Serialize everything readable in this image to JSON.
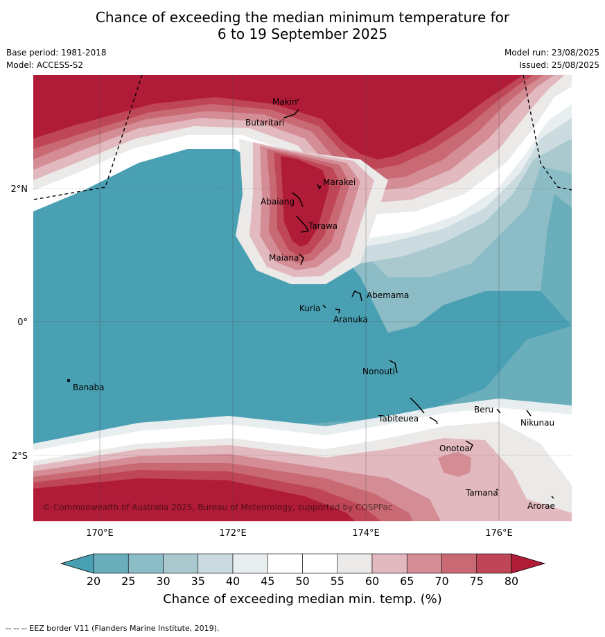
{
  "title_line1": "Chance of exceeding the median minimum temperature for",
  "title_line2": "6 to 19 September 2025",
  "base_period": "Base period: 1981-2018",
  "model": "Model: ACCESS-S2",
  "model_run": "Model run: 23/08/2025",
  "issued": "Issued: 25/08/2025",
  "copyright": "© Commonwealth of Australia 2025, Bureau of Meteorology, supported by COSPPac",
  "footer": "--  --  -- EEZ border V11 (Flanders Marine Institute, 2019).",
  "lat_labels": [
    "2°N",
    "0°",
    "2°S"
  ],
  "lon_labels": [
    "170°E",
    "172°E",
    "174°E",
    "176°E"
  ],
  "islands": [
    "Makin",
    "Butaritari",
    "Marakei",
    "Abaiang",
    "Tarawa",
    "Maiana",
    "Abemama",
    "Kuria",
    "Aranuka",
    "Nonouti",
    "Banaba",
    "Tabiteuea",
    "Beru",
    "Nikunau",
    "Onotoa",
    "Tamana",
    "Arorae"
  ],
  "colorbar": {
    "title": "Chance of exceeding median min. temp. (%)",
    "ticks": [
      "20",
      "25",
      "30",
      "35",
      "40",
      "45",
      "50",
      "55",
      "60",
      "65",
      "70",
      "75",
      "80"
    ],
    "colors": {
      "below20": "#4aa0b3",
      "20-25": "#6aaebc",
      "25-30": "#8cbcc6",
      "30-35": "#a9c9cf",
      "35-40": "#cbdbdf",
      "40-45": "#e8eef0",
      "45-50": "#ffffff",
      "50-55": "#ffffff",
      "55-60": "#ebeae8",
      "60-65": "#e2b9bf",
      "65-70": "#d48c95",
      "70-75": "#c96974",
      "75-80": "#bf4657",
      "above80": "#b01c38"
    }
  }
}
